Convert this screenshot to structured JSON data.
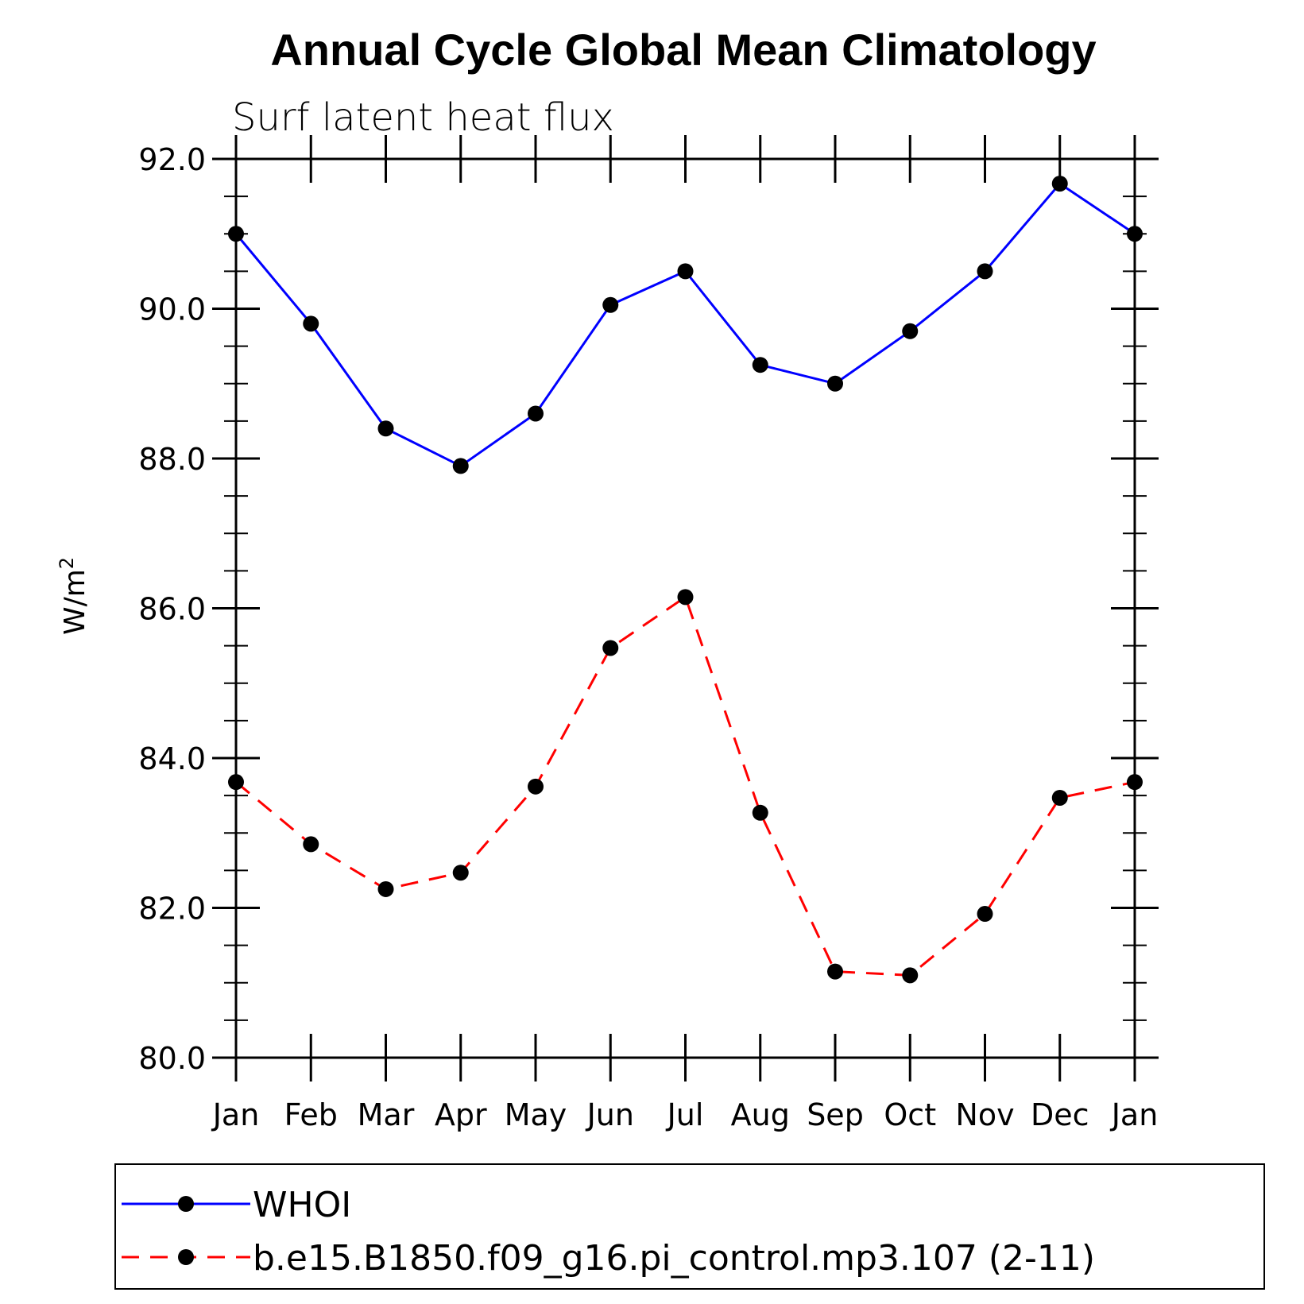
{
  "chart_data": {
    "type": "line",
    "title": "Annual Cycle Global Mean Climatology",
    "subtitle": "Surf latent heat flux",
    "ylabel": "W/m",
    "ylabel_superscript": "2",
    "xlabel": "",
    "categories": [
      "Jan",
      "Feb",
      "Mar",
      "Apr",
      "May",
      "Jun",
      "Jul",
      "Aug",
      "Sep",
      "Oct",
      "Nov",
      "Dec",
      "Jan"
    ],
    "ylim": [
      80.0,
      92.0
    ],
    "yticks": [
      "80.0",
      "82.0",
      "84.0",
      "86.0",
      "88.0",
      "90.0",
      "92.0"
    ],
    "grid": false,
    "legend_position": "bottom",
    "series": [
      {
        "name": "WHOI",
        "color": "#0000ff",
        "line_style": "solid",
        "marker": "filled-circle",
        "values": [
          91.0,
          89.8,
          88.4,
          87.9,
          88.6,
          90.05,
          90.5,
          89.25,
          89.0,
          89.7,
          90.5,
          91.67,
          91.0
        ]
      },
      {
        "name": "b.e15.B1850.f09_g16.pi_control.mp3.107 (2-11)",
        "color": "#ff0000",
        "line_style": "dashed",
        "marker": "filled-circle",
        "values": [
          83.68,
          82.85,
          82.25,
          82.47,
          83.62,
          85.47,
          86.15,
          83.27,
          81.15,
          81.1,
          81.92,
          83.47,
          83.68
        ]
      }
    ]
  }
}
